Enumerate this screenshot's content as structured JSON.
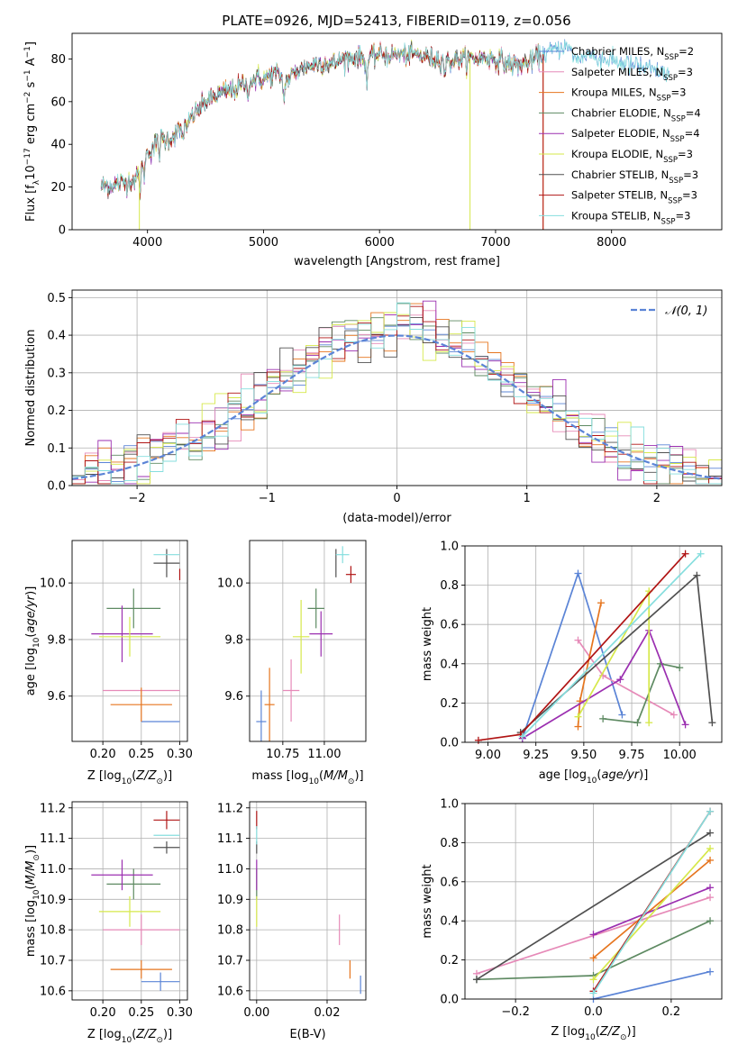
{
  "figure_title": "PLATE=0926, MJD=52413, FIBERID=0119, z=0.056",
  "colors": {
    "chabrier_miles": "#5b84d6",
    "salpeter_miles": "#e68ab8",
    "kroupa_miles": "#e6751e",
    "chabrier_elodie": "#5e8a62",
    "salpeter_elodie": "#9b2fb0",
    "kroupa_elodie": "#d6e84a",
    "chabrier_stelib": "#505050",
    "salpeter_stelib": "#b01414",
    "kroupa_stelib": "#86dede",
    "gaussian": "#5b84d6",
    "grid": "#b0b0b0"
  },
  "chart_data": [
    {
      "id": "spectrum",
      "type": "line",
      "xlabel": "wavelength [Angstrom, rest frame]",
      "ylabel": "Flux [f_λ 10^-17 erg cm^-2 s^-1 A^-1]",
      "xlim": [
        3350,
        8950
      ],
      "ylim": [
        0,
        92
      ],
      "xticks": [
        4000,
        5000,
        6000,
        7000,
        8000
      ],
      "yticks": [
        0,
        20,
        40,
        60,
        80
      ],
      "grid": false,
      "legend_position": "upper right",
      "legend": [
        {
          "label": "Chabrier MILES, N",
          "sub": "SSP",
          "tail": "=2"
        },
        {
          "label": "Salpeter MILES, N",
          "sub": "SSP",
          "tail": "=3"
        },
        {
          "label": "Kroupa MILES, N",
          "sub": "SSP",
          "tail": "=3"
        },
        {
          "label": "Chabrier ELODIE, N",
          "sub": "SSP",
          "tail": "=4"
        },
        {
          "label": "Salpeter ELODIE, N",
          "sub": "SSP",
          "tail": "=4"
        },
        {
          "label": "Kroupa ELODIE, N",
          "sub": "SSP",
          "tail": "=3"
        },
        {
          "label": "Chabrier STELIB, N",
          "sub": "SSP",
          "tail": "=3"
        },
        {
          "label": "Salpeter STELIB, N",
          "sub": "SSP",
          "tail": "=3"
        },
        {
          "label": "Kroupa STELIB, N",
          "sub": "SSP",
          "tail": "=3"
        }
      ],
      "continuum": [
        [
          3600,
          20
        ],
        [
          3700,
          21
        ],
        [
          3800,
          22
        ],
        [
          3900,
          24
        ],
        [
          4000,
          36
        ],
        [
          4100,
          42
        ],
        [
          4200,
          43
        ],
        [
          4300,
          48
        ],
        [
          4400,
          54
        ],
        [
          4500,
          60
        ],
        [
          4600,
          63
        ],
        [
          4700,
          65
        ],
        [
          4800,
          67
        ],
        [
          4900,
          70
        ],
        [
          5000,
          71
        ],
        [
          5100,
          73
        ],
        [
          5200,
          70
        ],
        [
          5300,
          75
        ],
        [
          5400,
          77
        ],
        [
          5500,
          78
        ],
        [
          5600,
          78
        ],
        [
          5700,
          80
        ],
        [
          5800,
          81
        ],
        [
          5900,
          80
        ],
        [
          6000,
          82
        ],
        [
          6100,
          82
        ],
        [
          6200,
          82
        ],
        [
          6300,
          82
        ],
        [
          6400,
          81
        ],
        [
          6500,
          80
        ],
        [
          6600,
          79
        ],
        [
          6700,
          80
        ],
        [
          6800,
          80
        ],
        [
          6900,
          81
        ],
        [
          7000,
          80
        ],
        [
          7100,
          78
        ],
        [
          7200,
          77
        ],
        [
          7300,
          79
        ],
        [
          7400,
          82
        ],
        [
          7500,
          84
        ],
        [
          7600,
          86
        ],
        [
          7700,
          80
        ],
        [
          7800,
          82
        ],
        [
          7900,
          80
        ],
        [
          8000,
          79
        ],
        [
          8100,
          78
        ],
        [
          8200,
          77
        ],
        [
          8300,
          75
        ],
        [
          8400,
          74
        ],
        [
          8500,
          73
        ]
      ],
      "dips": [
        [
          3934,
          -10
        ],
        [
          3968,
          -8
        ],
        [
          4101,
          -6
        ],
        [
          4305,
          -6
        ],
        [
          4340,
          -6
        ],
        [
          4861,
          -6
        ],
        [
          5175,
          -10
        ],
        [
          5890,
          -12
        ],
        [
          6563,
          -6
        ]
      ]
    },
    {
      "id": "residuals",
      "type": "histogram",
      "xlabel": "(data-model)/error",
      "ylabel": "Normed distribution",
      "xlim": [
        -2.5,
        2.5
      ],
      "ylim": [
        0,
        0.52
      ],
      "xticks": [
        -2,
        -1,
        0,
        1,
        2
      ],
      "yticks": [
        0.0,
        0.1,
        0.2,
        0.3,
        0.4,
        0.5
      ],
      "bin_width": 0.1,
      "grid": true,
      "legend_position": "upper right",
      "gaussian_label": "𝒩(0, 1)"
    },
    {
      "id": "age_vs_Z",
      "type": "errorbar",
      "xlabel": "Z [log10(Z/Z⊙)]",
      "ylabel": "age [log10(age/yr)]",
      "xlim": [
        0.16,
        0.31
      ],
      "ylim": [
        9.44,
        10.15
      ],
      "xticks": [
        0.2,
        0.25,
        0.3
      ],
      "yticks": [
        9.6,
        9.8,
        10.0
      ],
      "points": [
        {
          "m": "chabrier_miles",
          "x": 0.275,
          "y": 9.51,
          "xe": 0.025,
          "ye": 0.0
        },
        {
          "m": "salpeter_miles",
          "x": 0.25,
          "y": 9.62,
          "xe": 0.05,
          "ye": 0.0
        },
        {
          "m": "kroupa_miles",
          "x": 0.25,
          "y": 9.57,
          "xe": 0.04,
          "ye": 0.06
        },
        {
          "m": "chabrier_elodie",
          "x": 0.24,
          "y": 9.91,
          "xe": 0.035,
          "ye": 0.07
        },
        {
          "m": "salpeter_elodie",
          "x": 0.225,
          "y": 9.82,
          "xe": 0.04,
          "ye": 0.1
        },
        {
          "m": "kroupa_elodie",
          "x": 0.235,
          "y": 9.81,
          "xe": 0.04,
          "ye": 0.07
        },
        {
          "m": "chabrier_stelib",
          "x": 0.283,
          "y": 10.07,
          "xe": 0.017,
          "ye": 0.05
        },
        {
          "m": "salpeter_stelib",
          "x": 0.3,
          "y": 10.03,
          "xe": 0.0,
          "ye": 0.02
        },
        {
          "m": "kroupa_stelib",
          "x": 0.283,
          "y": 10.1,
          "xe": 0.017,
          "ye": 0.0
        }
      ]
    },
    {
      "id": "age_vs_mass",
      "type": "errorbar",
      "xlabel": "mass [log10(M/M⊙)]",
      "ylabel": "",
      "xlim": [
        10.55,
        11.25
      ],
      "ylim": [
        9.44,
        10.15
      ],
      "xticks": [
        10.75,
        11.0
      ],
      "yticks": [
        9.6,
        9.8,
        10.0
      ],
      "points": [
        {
          "m": "chabrier_miles",
          "x": 10.62,
          "y": 9.51,
          "xe": 0.03,
          "ye": 0.11
        },
        {
          "m": "salpeter_miles",
          "x": 10.8,
          "y": 9.62,
          "xe": 0.05,
          "ye": 0.11
        },
        {
          "m": "kroupa_miles",
          "x": 10.67,
          "y": 9.57,
          "xe": 0.03,
          "ye": 0.13
        },
        {
          "m": "chabrier_elodie",
          "x": 10.95,
          "y": 9.91,
          "xe": 0.05,
          "ye": 0.07
        },
        {
          "m": "salpeter_elodie",
          "x": 10.98,
          "y": 9.82,
          "xe": 0.07,
          "ye": 0.08
        },
        {
          "m": "kroupa_elodie",
          "x": 10.86,
          "y": 9.81,
          "xe": 0.05,
          "ye": 0.13
        },
        {
          "m": "chabrier_stelib",
          "x": 11.07,
          "y": 10.07,
          "xe": 0.0,
          "ye": 0.05
        },
        {
          "m": "salpeter_stelib",
          "x": 11.16,
          "y": 10.03,
          "xe": 0.03,
          "ye": 0.03
        },
        {
          "m": "kroupa_stelib",
          "x": 11.11,
          "y": 10.1,
          "xe": 0.04,
          "ye": 0.03
        }
      ]
    },
    {
      "id": "weight_vs_age",
      "type": "line",
      "xlabel": "age [log10(age/yr)]",
      "ylabel": "mass weight",
      "xlim": [
        8.88,
        10.22
      ],
      "ylim": [
        0,
        1
      ],
      "xticks": [
        9.0,
        9.25,
        9.5,
        9.75,
        10.0
      ],
      "yticks": [
        0.0,
        0.2,
        0.4,
        0.6,
        0.8,
        1.0
      ],
      "grid": true,
      "series": [
        {
          "m": "chabrier_miles",
          "x": [
            9.18,
            9.47,
            9.7
          ],
          "y": [
            0.02,
            0.86,
            0.14
          ]
        },
        {
          "m": "salpeter_miles",
          "x": [
            9.47,
            9.6,
            9.97
          ],
          "y": [
            0.52,
            0.34,
            0.14
          ]
        },
        {
          "m": "kroupa_miles",
          "x": [
            9.47,
            9.48,
            9.59
          ],
          "y": [
            0.08,
            0.21,
            0.71
          ]
        },
        {
          "m": "chabrier_elodie",
          "x": [
            9.6,
            9.78,
            9.9,
            10.0
          ],
          "y": [
            0.12,
            0.1,
            0.4,
            0.38
          ]
        },
        {
          "m": "salpeter_elodie",
          "x": [
            9.18,
            9.69,
            9.84,
            10.03
          ],
          "y": [
            0.02,
            0.32,
            0.57,
            0.09
          ]
        },
        {
          "m": "kroupa_elodie",
          "x": [
            9.47,
            9.84,
            9.84
          ],
          "y": [
            0.13,
            0.77,
            0.1
          ]
        },
        {
          "m": "chabrier_stelib",
          "x": [
            9.17,
            10.09,
            10.17
          ],
          "y": [
            0.05,
            0.85,
            0.1
          ]
        },
        {
          "m": "salpeter_stelib",
          "x": [
            8.95,
            9.17,
            10.03
          ],
          "y": [
            0.01,
            0.04,
            0.96
          ]
        },
        {
          "m": "kroupa_stelib",
          "x": [
            9.18,
            10.11
          ],
          "y": [
            0.03,
            0.96
          ]
        }
      ]
    },
    {
      "id": "mass_vs_Z",
      "type": "errorbar",
      "xlabel": "Z [log10(Z/Z⊙)]",
      "ylabel": "mass [log10(M/M⊙)]",
      "xlim": [
        0.16,
        0.31
      ],
      "ylim": [
        10.57,
        11.22
      ],
      "xticks": [
        0.2,
        0.25,
        0.3
      ],
      "yticks": [
        10.6,
        10.7,
        10.8,
        10.9,
        11.0,
        11.1,
        11.2
      ],
      "points": [
        {
          "m": "chabrier_miles",
          "x": 0.275,
          "y": 10.63,
          "xe": 0.025,
          "ye": 0.03
        },
        {
          "m": "salpeter_miles",
          "x": 0.25,
          "y": 10.8,
          "xe": 0.05,
          "ye": 0.05
        },
        {
          "m": "kroupa_miles",
          "x": 0.25,
          "y": 10.67,
          "xe": 0.04,
          "ye": 0.03
        },
        {
          "m": "chabrier_elodie",
          "x": 0.24,
          "y": 10.95,
          "xe": 0.035,
          "ye": 0.05
        },
        {
          "m": "salpeter_elodie",
          "x": 0.225,
          "y": 10.98,
          "xe": 0.04,
          "ye": 0.05
        },
        {
          "m": "kroupa_elodie",
          "x": 0.235,
          "y": 10.86,
          "xe": 0.04,
          "ye": 0.05
        },
        {
          "m": "chabrier_stelib",
          "x": 0.283,
          "y": 11.07,
          "xe": 0.017,
          "ye": 0.02
        },
        {
          "m": "salpeter_stelib",
          "x": 0.283,
          "y": 11.16,
          "xe": 0.017,
          "ye": 0.03
        },
        {
          "m": "kroupa_stelib",
          "x": 0.283,
          "y": 11.11,
          "xe": 0.017,
          "ye": 0.0
        }
      ]
    },
    {
      "id": "mass_vs_ebv",
      "type": "errorbar",
      "xlabel": "E(B-V)",
      "ylabel": "",
      "xlim": [
        -0.002,
        0.031
      ],
      "ylim": [
        10.57,
        11.22
      ],
      "xticks": [
        0.0,
        0.02
      ],
      "yticks": [
        10.6,
        10.7,
        10.8,
        10.9,
        11.0,
        11.1,
        11.2
      ],
      "points": [
        {
          "m": "chabrier_miles",
          "x": 0.0295,
          "y": 10.62,
          "xe": 0.0,
          "ye": 0.03
        },
        {
          "m": "salpeter_miles",
          "x": 0.0235,
          "y": 10.8,
          "xe": 0.0,
          "ye": 0.05
        },
        {
          "m": "kroupa_miles",
          "x": 0.0265,
          "y": 10.67,
          "xe": 0.0,
          "ye": 0.03
        },
        {
          "m": "chabrier_elodie",
          "x": 0.0,
          "y": 10.95,
          "xe": 0.0,
          "ye": 0.05
        },
        {
          "m": "salpeter_elodie",
          "x": 0.0,
          "y": 10.98,
          "xe": 0.0,
          "ye": 0.05
        },
        {
          "m": "kroupa_elodie",
          "x": 0.0,
          "y": 10.86,
          "xe": 0.0,
          "ye": 0.05
        },
        {
          "m": "chabrier_stelib",
          "x": 0.0,
          "y": 11.07,
          "xe": 0.0,
          "ye": 0.02
        },
        {
          "m": "salpeter_stelib",
          "x": 0.0,
          "y": 11.16,
          "xe": 0.0,
          "ye": 0.03
        },
        {
          "m": "kroupa_stelib",
          "x": 0.0,
          "y": 11.11,
          "xe": 0.0,
          "ye": 0.03
        }
      ]
    },
    {
      "id": "weight_vs_Z",
      "type": "line",
      "xlabel": "Z [log10(Z/Z⊙)]",
      "ylabel": "mass weight",
      "xlim": [
        -0.33,
        0.33
      ],
      "ylim": [
        0,
        1
      ],
      "xticks": [
        -0.2,
        0.0,
        0.2
      ],
      "yticks": [
        0.0,
        0.2,
        0.4,
        0.6,
        0.8,
        1.0
      ],
      "grid": true,
      "series": [
        {
          "m": "chabrier_miles",
          "x": [
            0.0,
            0.3
          ],
          "y": [
            0.0,
            0.14
          ]
        },
        {
          "m": "salpeter_miles",
          "x": [
            -0.3,
            0.3
          ],
          "y": [
            0.13,
            0.52
          ]
        },
        {
          "m": "kroupa_miles",
          "x": [
            0.0,
            0.3
          ],
          "y": [
            0.21,
            0.71
          ]
        },
        {
          "m": "chabrier_elodie",
          "x": [
            -0.3,
            0.0,
            0.3
          ],
          "y": [
            0.1,
            0.12,
            0.4
          ]
        },
        {
          "m": "salpeter_elodie",
          "x": [
            0.0,
            0.3
          ],
          "y": [
            0.33,
            0.57
          ]
        },
        {
          "m": "kroupa_elodie",
          "x": [
            0.0,
            0.3
          ],
          "y": [
            0.1,
            0.77
          ]
        },
        {
          "m": "chabrier_stelib",
          "x": [
            -0.3,
            0.3
          ],
          "y": [
            0.1,
            0.85
          ]
        },
        {
          "m": "salpeter_stelib",
          "x": [
            0.0,
            0.3
          ],
          "y": [
            0.04,
            0.96
          ]
        },
        {
          "m": "kroupa_stelib",
          "x": [
            0.0,
            0.3
          ],
          "y": [
            0.03,
            0.96
          ]
        }
      ]
    }
  ]
}
